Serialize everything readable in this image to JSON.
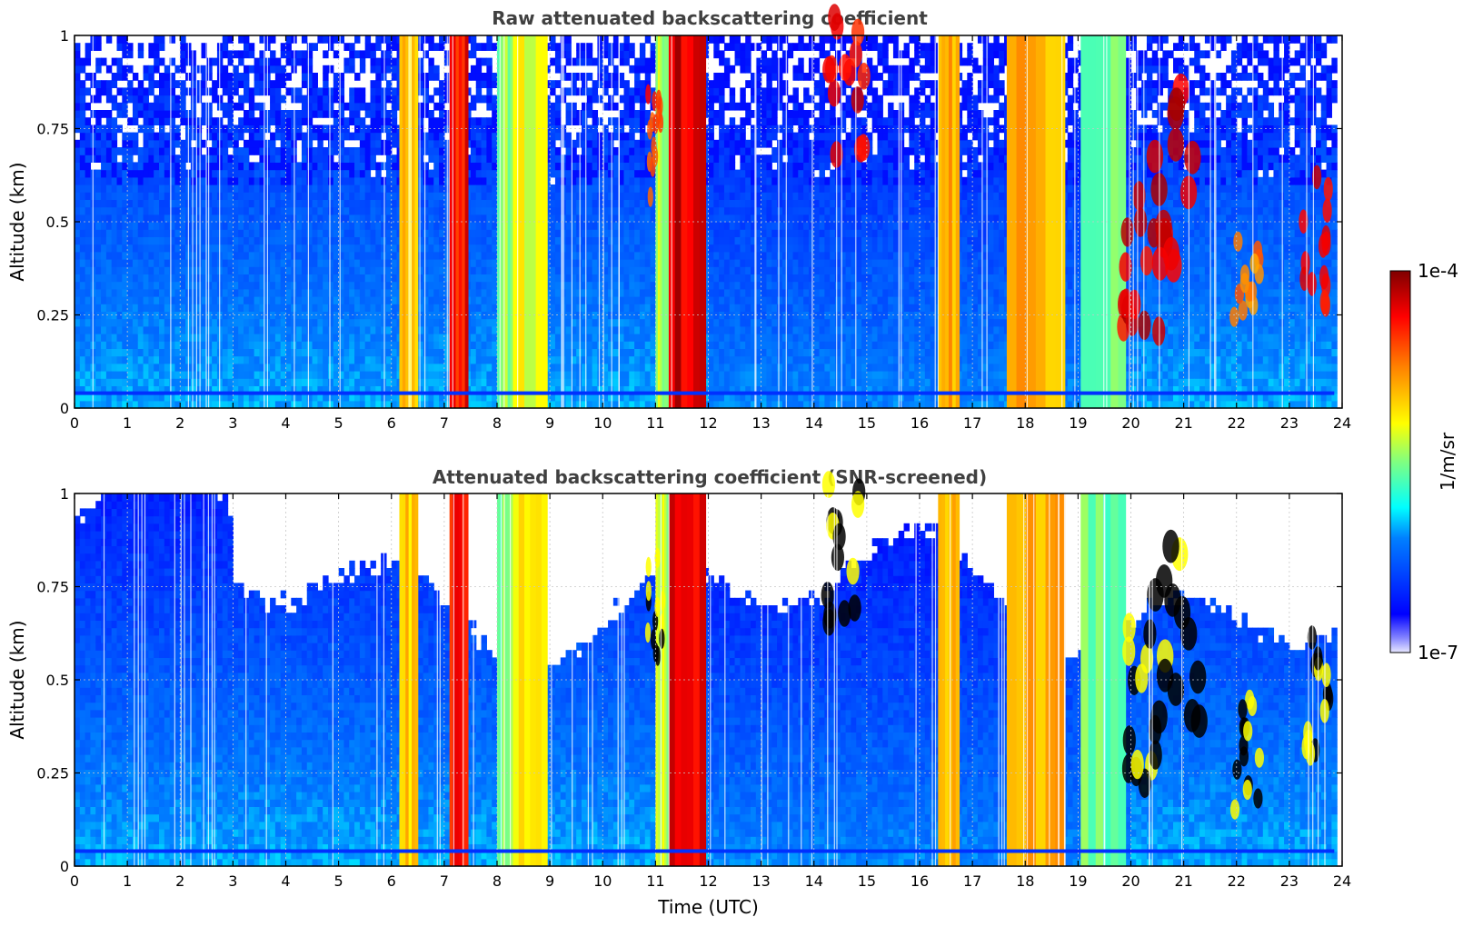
{
  "chart_data": [
    {
      "type": "heatmap",
      "title": "Raw attenuated backscattering coefficient",
      "xlabel": "",
      "ylabel": "Altitude (km)",
      "xlim": [
        0,
        24
      ],
      "ylim": [
        0,
        1
      ],
      "x_ticks": [
        "0",
        "1",
        "2",
        "3",
        "4",
        "5",
        "6",
        "7",
        "8",
        "9",
        "10",
        "11",
        "12",
        "13",
        "14",
        "15",
        "16",
        "17",
        "18",
        "19",
        "20",
        "21",
        "22",
        "23",
        "24"
      ],
      "y_ticks": [
        "0",
        "0.25",
        "0.5",
        "0.75",
        "1"
      ],
      "grid": true,
      "colormap": "jet",
      "screened": false,
      "bands": [
        {
          "start": 6.15,
          "end": 6.5,
          "value": 0.65
        },
        {
          "start": 7.1,
          "end": 7.45,
          "value": 0.87
        },
        {
          "start": 8.0,
          "end": 8.3,
          "value": 0.5
        },
        {
          "start": 8.3,
          "end": 8.95,
          "value": 0.6
        },
        {
          "start": 11.0,
          "end": 11.25,
          "value": 0.55
        },
        {
          "start": 11.25,
          "end": 11.95,
          "value": 0.92
        },
        {
          "start": 16.35,
          "end": 16.75,
          "value": 0.7
        },
        {
          "start": 17.65,
          "end": 18.75,
          "value": 0.7
        },
        {
          "start": 19.05,
          "end": 19.9,
          "value": 0.48
        }
      ],
      "clouds": [
        {
          "x": 14.6,
          "y": 0.85,
          "w": 0.35,
          "h": 0.2,
          "value": 0.95
        },
        {
          "x": 11.0,
          "y": 0.7,
          "w": 0.15,
          "h": 0.15,
          "value": 0.88
        },
        {
          "x": 20.2,
          "y": 0.42,
          "w": 0.35,
          "h": 0.22,
          "value": 0.97
        },
        {
          "x": 20.9,
          "y": 0.62,
          "w": 0.45,
          "h": 0.25,
          "value": 0.97
        },
        {
          "x": 22.2,
          "y": 0.3,
          "w": 0.25,
          "h": 0.15,
          "value": 0.8
        },
        {
          "x": 23.5,
          "y": 0.45,
          "w": 0.25,
          "h": 0.18,
          "value": 0.95
        }
      ]
    },
    {
      "type": "heatmap",
      "title": "Attenuated backscattering coefficient (SNR-screened)",
      "xlabel": "Time (UTC)",
      "ylabel": "Altitude (km)",
      "xlim": [
        0,
        24
      ],
      "ylim": [
        0,
        1
      ],
      "x_ticks": [
        "0",
        "1",
        "2",
        "3",
        "4",
        "5",
        "6",
        "7",
        "8",
        "9",
        "10",
        "11",
        "12",
        "13",
        "14",
        "15",
        "16",
        "17",
        "18",
        "19",
        "20",
        "21",
        "22",
        "23",
        "24"
      ],
      "y_ticks": [
        "0",
        "0.25",
        "0.5",
        "0.75",
        "1"
      ],
      "grid": true,
      "colormap": "jet",
      "screened": true,
      "bands": [
        {
          "start": 6.15,
          "end": 6.5,
          "value": 0.65
        },
        {
          "start": 7.1,
          "end": 7.45,
          "value": 0.87
        },
        {
          "start": 8.0,
          "end": 8.3,
          "value": 0.5
        },
        {
          "start": 8.3,
          "end": 8.95,
          "value": 0.6
        },
        {
          "start": 11.0,
          "end": 11.25,
          "value": 0.55
        },
        {
          "start": 11.25,
          "end": 11.95,
          "value": 0.92
        },
        {
          "start": 16.35,
          "end": 16.75,
          "value": 0.7
        },
        {
          "start": 17.65,
          "end": 18.75,
          "value": 0.7
        },
        {
          "start": 19.05,
          "end": 19.9,
          "value": 0.48
        }
      ],
      "clouds": [
        {
          "x": 14.6,
          "y": 0.85,
          "w": 0.35,
          "h": 0.2,
          "value": 1.0
        },
        {
          "x": 11.0,
          "y": 0.7,
          "w": 0.15,
          "h": 0.15,
          "value": 1.0
        },
        {
          "x": 20.2,
          "y": 0.42,
          "w": 0.35,
          "h": 0.22,
          "value": 1.0
        },
        {
          "x": 20.9,
          "y": 0.62,
          "w": 0.45,
          "h": 0.25,
          "value": 1.0
        },
        {
          "x": 22.2,
          "y": 0.3,
          "w": 0.25,
          "h": 0.15,
          "value": 1.0
        },
        {
          "x": 23.5,
          "y": 0.45,
          "w": 0.25,
          "h": 0.18,
          "value": 1.0
        }
      ]
    }
  ],
  "colorbar": {
    "label": "1/m/sr",
    "max_label": "1e-4",
    "min_label": "1e-7",
    "colormap": "jet"
  }
}
